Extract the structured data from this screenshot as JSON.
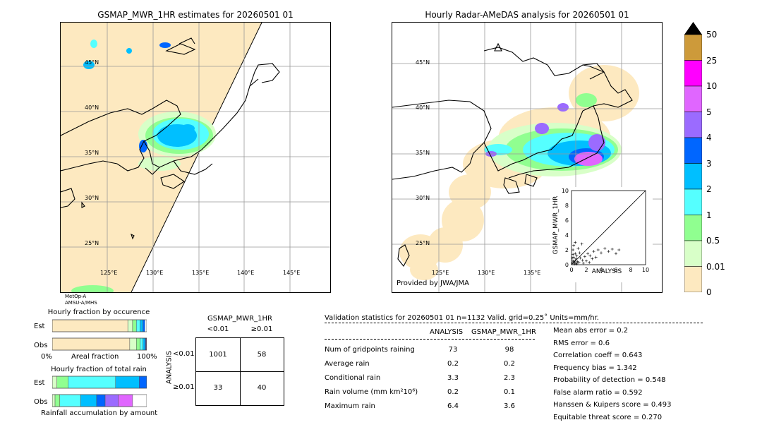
{
  "titles": {
    "left_map": "GSMAP_MWR_1HR estimates for 20260501 01",
    "right_map": "Hourly Radar-AMeDAS analysis for 20260501 01"
  },
  "left_map": {
    "lat_labels": [
      "45°N",
      "40°N",
      "35°N",
      "30°N",
      "25°N"
    ],
    "lon_labels": [
      "125°E",
      "130°E",
      "135°E",
      "140°E",
      "145°E"
    ],
    "satellite_note": [
      "MetOp-A",
      "AMSU-A/MHS"
    ]
  },
  "right_map": {
    "lat_labels": [
      "45°N",
      "40°N",
      "35°N",
      "30°N",
      "25°N"
    ],
    "lon_labels": [
      "125°E",
      "130°E",
      "135°E"
    ],
    "provided_by": "Provided by JWA/JMA"
  },
  "scatter": {
    "xlabel": "ANALYSIS",
    "ylabel": "GSMAP_MWR_1HR",
    "ticks": [
      "0",
      "2",
      "4",
      "6",
      "8",
      "10"
    ],
    "xlim": [
      0,
      10
    ],
    "ylim": [
      0,
      10
    ]
  },
  "colorbar": {
    "labels": [
      "50",
      "25",
      "10",
      "5",
      "4",
      "3",
      "2",
      "1",
      "0.5",
      "0.01",
      "0"
    ],
    "colors": [
      "#cd9a3a",
      "#ff00ff",
      "#e066ff",
      "#9b6bff",
      "#0066ff",
      "#00bfff",
      "#55ffff",
      "#90ff90",
      "#d8ffc8",
      "#fde9c0"
    ],
    "over_color": "#000000"
  },
  "occurrence": {
    "title": "Hourly fraction by occurence",
    "rows": [
      "Est",
      "Obs"
    ],
    "axis_left": "0%",
    "axis_mid": "Areal fraction",
    "axis_right": "100%"
  },
  "total_rain": {
    "title": "Hourly fraction of total rain",
    "rows": [
      "Est",
      "Obs"
    ],
    "footer": "Rainfall accumulation by amount"
  },
  "contingency": {
    "title": "GSMAP_MWR_1HR",
    "col_labels": [
      "<0.01",
      "≥0.01"
    ],
    "row_labels": [
      "<0.01",
      "≥0.01"
    ],
    "side_label": "ANALYSIS",
    "cells": [
      [
        "1001",
        "58"
      ],
      [
        "33",
        "40"
      ]
    ]
  },
  "validation": {
    "header": "Validation statistics for 20260501 01  n=1132 Valid. grid=0.25˚ Units=mm/hr.",
    "col_analysis": "ANALYSIS",
    "col_gsmap": "GSMAP_MWR_1HR",
    "rows": [
      {
        "label": "Num of gridpoints raining",
        "analysis": "73",
        "gsmap": "98"
      },
      {
        "label": "Average rain",
        "analysis": "0.2",
        "gsmap": "0.2"
      },
      {
        "label": "Conditional rain",
        "analysis": "3.3",
        "gsmap": "2.3"
      },
      {
        "label": "Rain volume (mm km²10⁶)",
        "analysis": "0.2",
        "gsmap": "0.1"
      },
      {
        "label": "Maximum rain",
        "analysis": "6.4",
        "gsmap": "3.6"
      }
    ],
    "scores": [
      "Mean abs error =    0.2",
      "RMS error =    0.6",
      "Correlation coeff =  0.643",
      "Frequency bias =  1.342",
      "Probability of detection =  0.548",
      "False alarm ratio =  0.592",
      "Hanssen & Kuipers score =  0.493",
      "Equitable threat score =  0.270"
    ]
  },
  "chart_data": [
    {
      "type": "scatter",
      "xlabel": "ANALYSIS",
      "ylabel": "GSMAP_MWR_1HR",
      "xlim": [
        0,
        10
      ],
      "ylim": [
        0,
        10
      ],
      "points": [
        [
          0.1,
          0.2
        ],
        [
          0.2,
          0.5
        ],
        [
          0.3,
          1.0
        ],
        [
          0.4,
          0.3
        ],
        [
          0.5,
          1.5
        ],
        [
          0.2,
          2.0
        ],
        [
          0.6,
          0.8
        ],
        [
          0.8,
          0.4
        ],
        [
          0.3,
          2.6
        ],
        [
          0.5,
          3.0
        ],
        [
          0.7,
          1.2
        ],
        [
          1.0,
          0.3
        ],
        [
          1.2,
          0.9
        ],
        [
          1.5,
          0.6
        ],
        [
          1.8,
          1.1
        ],
        [
          2.0,
          0.5
        ],
        [
          2.2,
          1.5
        ],
        [
          2.5,
          1.2
        ],
        [
          2.8,
          0.8
        ],
        [
          3.0,
          1.8
        ],
        [
          3.3,
          1.0
        ],
        [
          3.6,
          2.0
        ],
        [
          4.0,
          1.6
        ],
        [
          4.5,
          2.2
        ],
        [
          5.0,
          1.8
        ],
        [
          5.5,
          2.1
        ],
        [
          6.0,
          1.5
        ],
        [
          6.4,
          2.0
        ],
        [
          0.9,
          2.2
        ],
        [
          1.4,
          2.8
        ],
        [
          0.4,
          0.1
        ],
        [
          0.1,
          0.9
        ],
        [
          0.2,
          1.4
        ],
        [
          0.6,
          0.2
        ],
        [
          1.1,
          1.6
        ],
        [
          1.6,
          0.2
        ],
        [
          2.4,
          0.3
        ],
        [
          0.3,
          0.4
        ],
        [
          0.5,
          0.6
        ],
        [
          0.7,
          0.1
        ]
      ]
    },
    {
      "type": "bar",
      "title": "Hourly fraction by occurence",
      "categories": [
        "Est",
        "Obs"
      ],
      "series": [
        {
          "color": "#fde9c0",
          "values": [
            0.8,
            0.82
          ]
        },
        {
          "color": "#d8ffc8",
          "values": [
            0.05,
            0.07
          ]
        },
        {
          "color": "#90ff90",
          "values": [
            0.04,
            0.04
          ]
        },
        {
          "color": "#55ffff",
          "values": [
            0.04,
            0.03
          ]
        },
        {
          "color": "#00bfff",
          "values": [
            0.03,
            0.02
          ]
        },
        {
          "color": "#0066ff",
          "values": [
            0.02,
            0.01
          ]
        },
        {
          "color": "#9b6bff",
          "values": [
            0.0,
            0.005
          ]
        },
        {
          "color": "#e066ff",
          "values": [
            0.0,
            0.005
          ]
        }
      ]
    },
    {
      "type": "bar",
      "title": "Hourly fraction of total rain",
      "categories": [
        "Est",
        "Obs"
      ],
      "series": [
        {
          "color": "#d8ffc8",
          "values": [
            0.05,
            0.03
          ]
        },
        {
          "color": "#90ff90",
          "values": [
            0.12,
            0.05
          ]
        },
        {
          "color": "#55ffff",
          "values": [
            0.5,
            0.22
          ]
        },
        {
          "color": "#00bfff",
          "values": [
            0.25,
            0.17
          ]
        },
        {
          "color": "#0066ff",
          "values": [
            0.08,
            0.09
          ]
        },
        {
          "color": "#9b6bff",
          "values": [
            0.0,
            0.14
          ]
        },
        {
          "color": "#e066ff",
          "values": [
            0.0,
            0.15
          ]
        }
      ]
    }
  ]
}
